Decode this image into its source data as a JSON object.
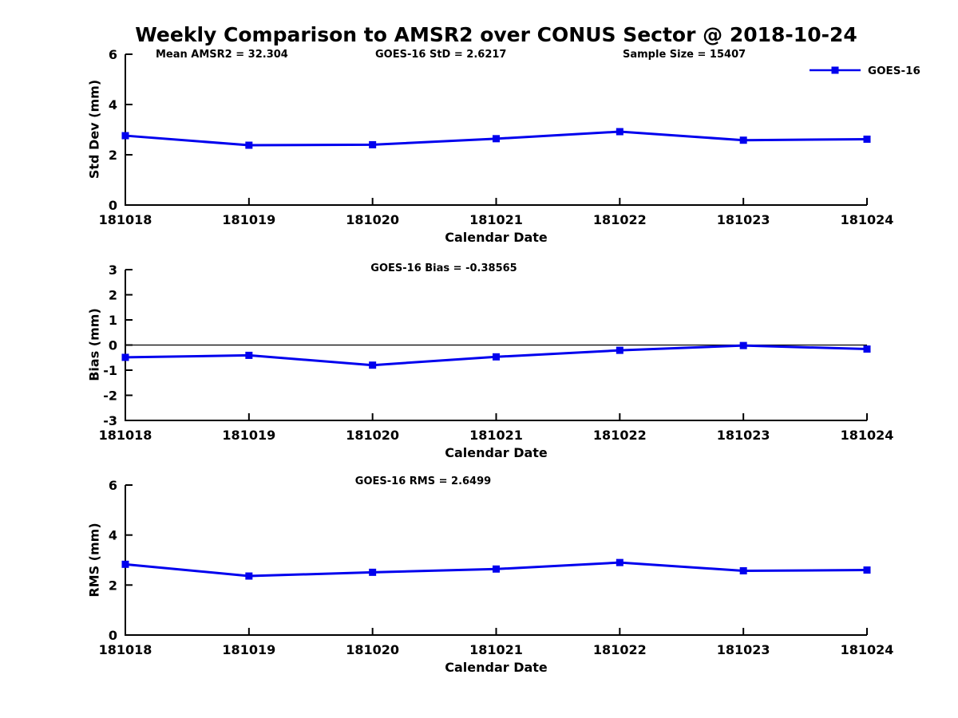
{
  "title": "Weekly Comparison to AMSR2 over CONUS Sector @ 2018-10-24",
  "legend": {
    "label": "GOES-16",
    "position": "top-right"
  },
  "colors": {
    "line": "#0000EE",
    "axis": "#000000",
    "zero_line": "#000000",
    "background": "#FFFFFF",
    "text": "#000000"
  },
  "annotations": {
    "mean_amsr2": "Mean AMSR2 = 32.304",
    "goes16_std": "GOES-16 StD = 2.6217",
    "sample_size": "Sample Size = 15407",
    "goes16_bias": "GOES-16 Bias  = -0.38565",
    "goes16_rms": "GOES-16 RMS = 2.6499"
  },
  "chart_data": [
    {
      "type": "line",
      "name": "std-dev",
      "ylabel": "Std Dev (mm)",
      "xlabel": "Calendar Date",
      "ylim": [
        0,
        6
      ],
      "yticks": [
        0,
        2,
        4,
        6
      ],
      "grid": false,
      "zero_line": false,
      "categories": [
        "181018",
        "181019",
        "181020",
        "181021",
        "181022",
        "181023",
        "181024"
      ],
      "series": [
        {
          "name": "GOES-16",
          "values": [
            2.76,
            2.38,
            2.4,
            2.64,
            2.92,
            2.58,
            2.62
          ]
        }
      ]
    },
    {
      "type": "line",
      "name": "bias",
      "ylabel": "Bias (mm)",
      "xlabel": "Calendar Date",
      "ylim": [
        -3,
        3
      ],
      "yticks": [
        -3,
        -2,
        -1,
        0,
        1,
        2,
        3
      ],
      "grid": false,
      "zero_line": true,
      "categories": [
        "181018",
        "181019",
        "181020",
        "181021",
        "181022",
        "181023",
        "181024"
      ],
      "series": [
        {
          "name": "GOES-16",
          "values": [
            -0.49,
            -0.41,
            -0.8,
            -0.47,
            -0.21,
            -0.02,
            -0.16
          ]
        }
      ]
    },
    {
      "type": "line",
      "name": "rms",
      "ylabel": "RMS (mm)",
      "xlabel": "Calendar Date",
      "ylim": [
        0,
        6
      ],
      "yticks": [
        0,
        2,
        4,
        6
      ],
      "grid": false,
      "zero_line": false,
      "categories": [
        "181018",
        "181019",
        "181020",
        "181021",
        "181022",
        "181023",
        "181024"
      ],
      "series": [
        {
          "name": "GOES-16",
          "values": [
            2.83,
            2.36,
            2.51,
            2.64,
            2.9,
            2.57,
            2.6
          ]
        }
      ]
    }
  ]
}
